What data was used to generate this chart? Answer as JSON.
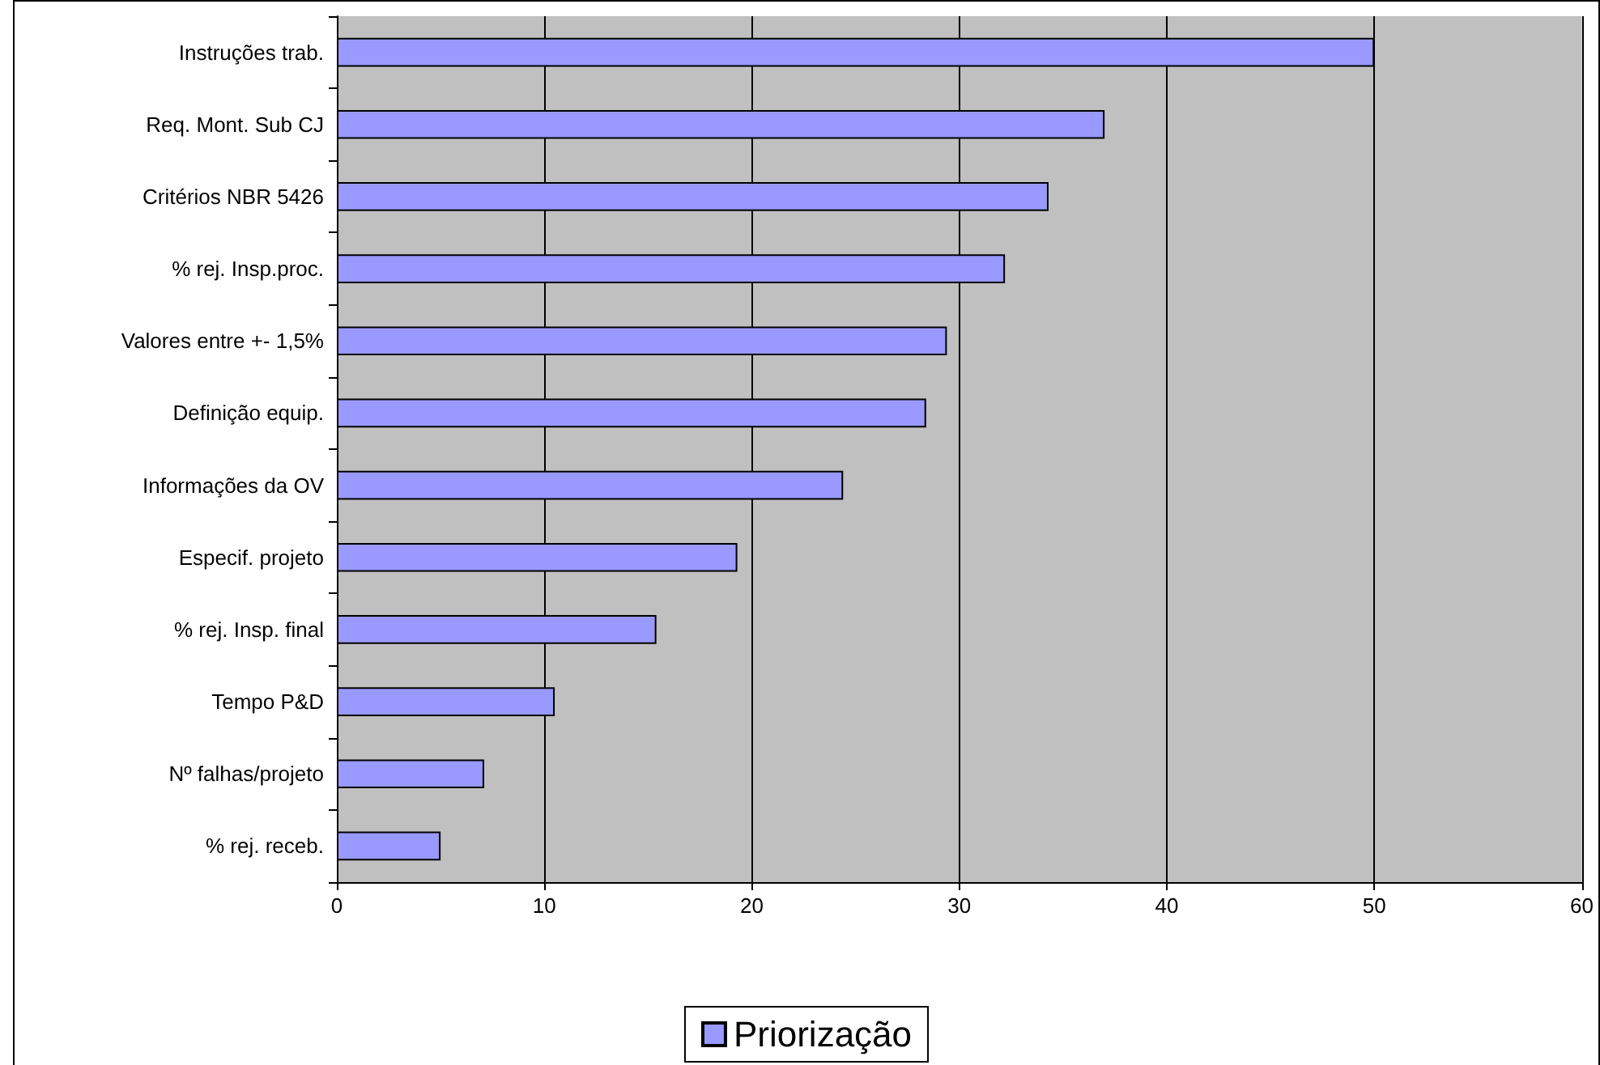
{
  "chart_data": {
    "type": "bar",
    "orientation": "horizontal",
    "categories": [
      "Instruções trab.",
      "Req. Mont. Sub CJ",
      "Critérios NBR 5426",
      "% rej. Insp.proc.",
      "Valores entre +- 1,5%",
      "Definição equip.",
      "Informações da OV",
      "Especif. projeto",
      "% rej. Insp. final",
      "Tempo P&D",
      "Nº falhas/projeto",
      "% rej. receb."
    ],
    "series": [
      {
        "name": "Priorização",
        "color": "#9999ff",
        "values": [
          50,
          37.0,
          34.3,
          32.2,
          29.4,
          28.4,
          24.4,
          19.3,
          15.4,
          10.5,
          7.1,
          5.0
        ]
      }
    ],
    "xlim": [
      0,
      60
    ],
    "xticks": [
      0,
      10,
      20,
      30,
      40,
      50,
      60
    ],
    "grid": "x",
    "legend": "bottom"
  }
}
